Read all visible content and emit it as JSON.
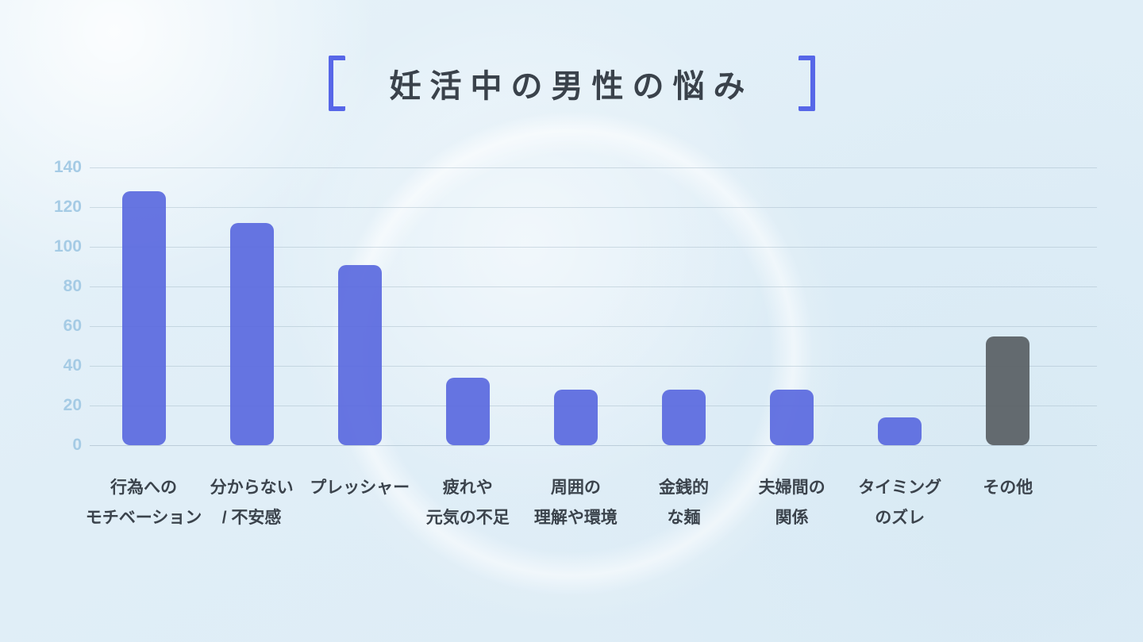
{
  "title": {
    "text": "妊活中の男性の悩み"
  },
  "chart_data": {
    "type": "bar",
    "title": "妊活中の男性の悩み",
    "categories": [
      "行為への\nモチベーション",
      "分からない\n/ 不安感",
      "プレッシャー",
      "疲れや\n元気の不足",
      "周囲の\n理解や環境",
      "金銭的\nな麺",
      "夫婦間の\n関係",
      "タイミング\nのズレ",
      "その他"
    ],
    "values": [
      128,
      112,
      91,
      34,
      28,
      28,
      28,
      14,
      55
    ],
    "bar_colors": [
      "#5a69de",
      "#5a69de",
      "#5a69de",
      "#5a69de",
      "#5a69de",
      "#5a69de",
      "#5a69de",
      "#5a69de",
      "#595e63"
    ],
    "xlabel": "",
    "ylabel": "",
    "ylim": [
      0,
      140
    ],
    "yticks": [
      0,
      20,
      40,
      60,
      80,
      100,
      120,
      140
    ],
    "grid": true,
    "legend": "none"
  },
  "colors": {
    "bar_primary": "#5a69de",
    "bar_other": "#595e63",
    "axis_tick_label": "#a5cbe5",
    "category_label": "#3b434c",
    "title_text": "#3a424b",
    "bracket": "#5767e8",
    "gridline": "#9eb3c2",
    "background": "#e0eef7"
  }
}
